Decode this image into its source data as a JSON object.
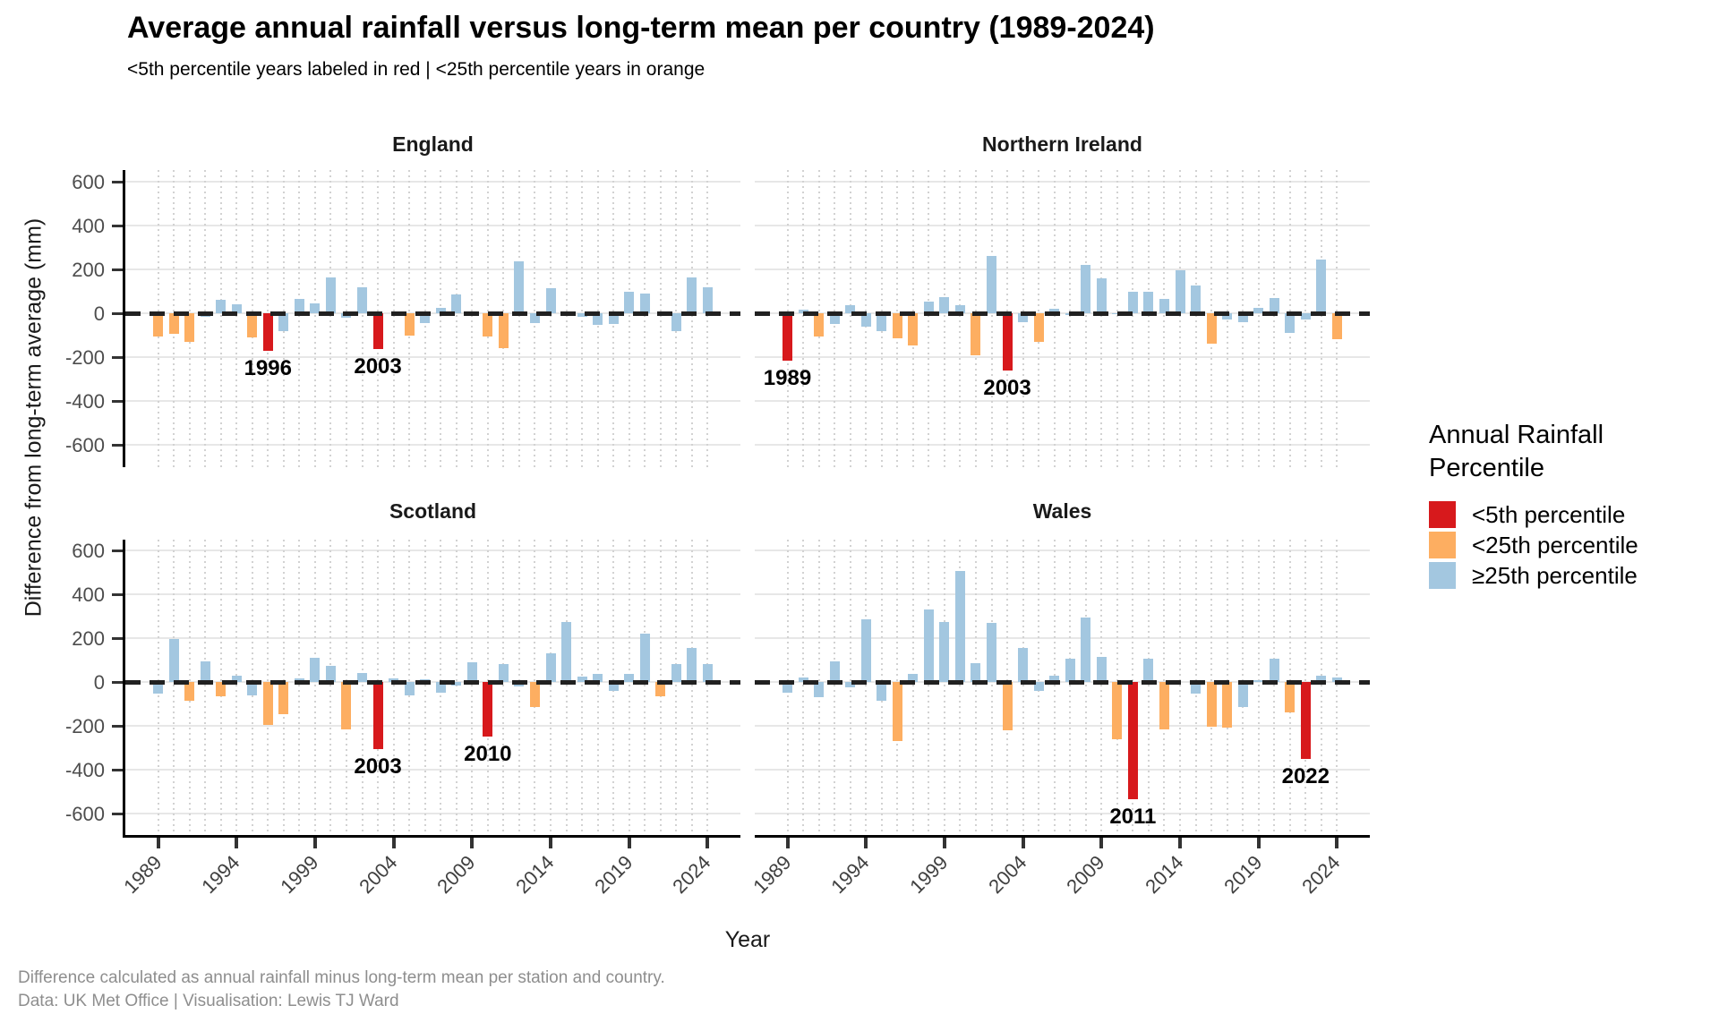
{
  "header": {
    "title": "Average annual rainfall versus long-term mean per country (1989-2024)",
    "subtitle": "<5th percentile years labeled in red | <25th percentile years in orange"
  },
  "colors": {
    "red": "#d7191c",
    "orange": "#fdae61",
    "blue": "#a3c7e0"
  },
  "legend": {
    "title_line1": "Annual Rainfall",
    "title_line2": "Percentile",
    "items": [
      {
        "label": "<5th percentile",
        "color": "red"
      },
      {
        "label": "<25th percentile",
        "color": "orange"
      },
      {
        "label": "≥25th percentile",
        "color": "blue"
      }
    ]
  },
  "caption": {
    "line1": "Difference calculated as annual rainfall minus long-term mean per station and country.",
    "line2": "Data: UK Met Office | Visualisation: Lewis TJ Ward"
  },
  "chart_data": {
    "type": "bar",
    "title": "Average annual rainfall versus long-term mean per country (1989-2024)",
    "xlabel": "Year",
    "ylabel": "Difference from long-term average (mm)",
    "ylim": [
      -600,
      600
    ],
    "yticks": [
      600,
      400,
      200,
      0,
      -200,
      -400,
      -600
    ],
    "xticks": [
      1989,
      1994,
      1999,
      2004,
      2009,
      2014,
      2019,
      2024
    ],
    "grid": "horizontal solid, vertical dotted per year",
    "legend_position": "right",
    "category_meaning": {
      "r": "<5th percentile",
      "o": "<25th percentile",
      "b": ">=25th percentile"
    },
    "years": [
      1989,
      1990,
      1991,
      1992,
      1993,
      1994,
      1995,
      1996,
      1997,
      1998,
      1999,
      2000,
      2001,
      2002,
      2003,
      2004,
      2005,
      2006,
      2007,
      2008,
      2009,
      2010,
      2011,
      2012,
      2013,
      2014,
      2015,
      2016,
      2017,
      2018,
      2019,
      2020,
      2021,
      2022,
      2023,
      2024
    ],
    "series": [
      {
        "name": "England",
        "values": [
          -105,
          -95,
          -130,
          -15,
          60,
          40,
          -110,
          -170,
          -80,
          65,
          45,
          165,
          -20,
          120,
          -165,
          0,
          -100,
          -45,
          25,
          85,
          10,
          -105,
          -160,
          235,
          -45,
          115,
          0,
          -15,
          -55,
          -50,
          100,
          90,
          0,
          -80,
          165,
          120
        ],
        "percentile_class": [
          "o",
          "o",
          "o",
          "b",
          "b",
          "b",
          "o",
          "r",
          "b",
          "b",
          "b",
          "b",
          "b",
          "b",
          "r",
          "b",
          "o",
          "b",
          "b",
          "b",
          "b",
          "o",
          "o",
          "b",
          "b",
          "b",
          "b",
          "b",
          "b",
          "b",
          "b",
          "b",
          "b",
          "b",
          "b",
          "b"
        ],
        "labeled_years": [
          1996,
          2003
        ]
      },
      {
        "name": "Northern Ireland",
        "values": [
          -215,
          15,
          -105,
          -50,
          35,
          -60,
          -80,
          -115,
          -145,
          55,
          75,
          35,
          -190,
          260,
          -260,
          -40,
          -130,
          20,
          -10,
          220,
          160,
          -5,
          100,
          100,
          65,
          195,
          125,
          -140,
          -30,
          -40,
          25,
          70,
          -90,
          -30,
          245,
          -120
        ],
        "percentile_class": [
          "r",
          "b",
          "o",
          "b",
          "b",
          "b",
          "b",
          "o",
          "o",
          "b",
          "b",
          "b",
          "o",
          "b",
          "r",
          "b",
          "o",
          "b",
          "b",
          "b",
          "b",
          "b",
          "b",
          "b",
          "b",
          "b",
          "b",
          "o",
          "b",
          "b",
          "b",
          "b",
          "b",
          "b",
          "b",
          "o"
        ],
        "labeled_years": [
          1989,
          2003
        ]
      },
      {
        "name": "Scotland",
        "values": [
          -55,
          195,
          -85,
          95,
          -65,
          30,
          -60,
          -195,
          -145,
          15,
          110,
          75,
          -215,
          40,
          -305,
          18,
          -60,
          12,
          -50,
          -18,
          90,
          -250,
          80,
          -20,
          -115,
          130,
          275,
          25,
          35,
          -40,
          35,
          220,
          -65,
          80,
          155,
          80
        ],
        "percentile_class": [
          "b",
          "b",
          "o",
          "b",
          "o",
          "b",
          "b",
          "o",
          "o",
          "b",
          "b",
          "b",
          "o",
          "b",
          "r",
          "b",
          "b",
          "b",
          "b",
          "b",
          "b",
          "r",
          "b",
          "b",
          "o",
          "b",
          "b",
          "b",
          "b",
          "b",
          "b",
          "b",
          "o",
          "b",
          "b",
          "b"
        ],
        "labeled_years": [
          2003,
          2010
        ]
      },
      {
        "name": "Wales",
        "values": [
          -50,
          20,
          -70,
          95,
          -25,
          285,
          -85,
          -270,
          35,
          330,
          275,
          505,
          85,
          270,
          -220,
          155,
          -40,
          30,
          105,
          295,
          115,
          -260,
          -535,
          105,
          -215,
          0,
          -55,
          -205,
          -210,
          -115,
          10,
          105,
          -140,
          -350,
          30,
          20
        ],
        "percentile_class": [
          "b",
          "b",
          "b",
          "b",
          "b",
          "b",
          "b",
          "o",
          "b",
          "b",
          "b",
          "b",
          "b",
          "b",
          "o",
          "b",
          "b",
          "b",
          "b",
          "b",
          "b",
          "o",
          "r",
          "b",
          "o",
          "b",
          "b",
          "o",
          "o",
          "b",
          "b",
          "b",
          "o",
          "r",
          "b",
          "b"
        ],
        "labeled_years": [
          2011,
          2022
        ]
      }
    ]
  }
}
